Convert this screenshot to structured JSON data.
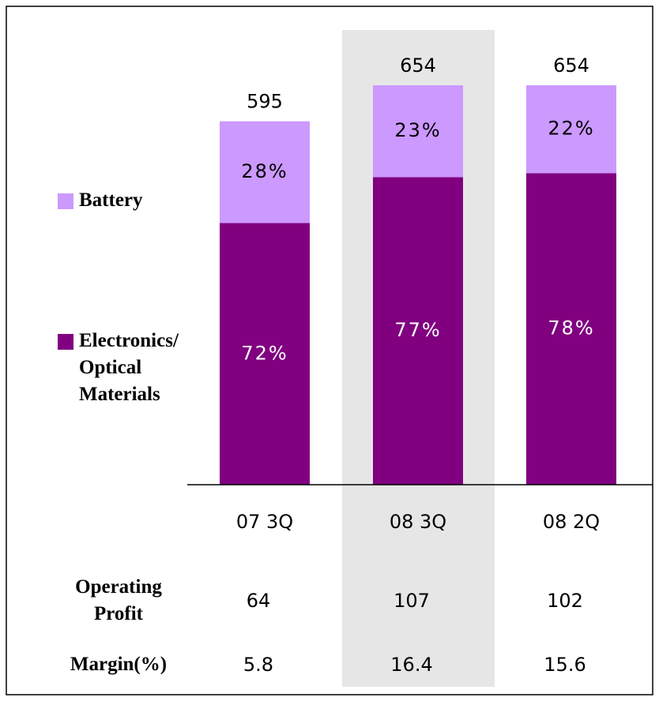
{
  "chart_data": {
    "type": "bar",
    "categories": [
      "07 3Q",
      "08 3Q",
      "08 2Q"
    ],
    "totals": [
      595,
      654,
      654
    ],
    "series": [
      {
        "name": "Electronics/ Optical Materials",
        "color": "#800080",
        "label_color": "#ffffff",
        "values": [
          72,
          77,
          78
        ],
        "value_labels": [
          "72%",
          "77%",
          "78%"
        ]
      },
      {
        "name": "Battery",
        "color": "#cc99ff",
        "label_color": "#000000",
        "values": [
          28,
          23,
          22
        ],
        "value_labels": [
          "28%",
          "23%",
          "22%"
        ]
      }
    ],
    "highlight": "08 3Q",
    "highlight_color": "#e6e6e6",
    "table": {
      "rows": [
        {
          "label": "Operating Profit",
          "values": [
            64,
            107,
            102
          ]
        },
        {
          "label": "Margin(%)",
          "values": [
            5.8,
            16.4,
            15.6
          ]
        }
      ]
    }
  }
}
